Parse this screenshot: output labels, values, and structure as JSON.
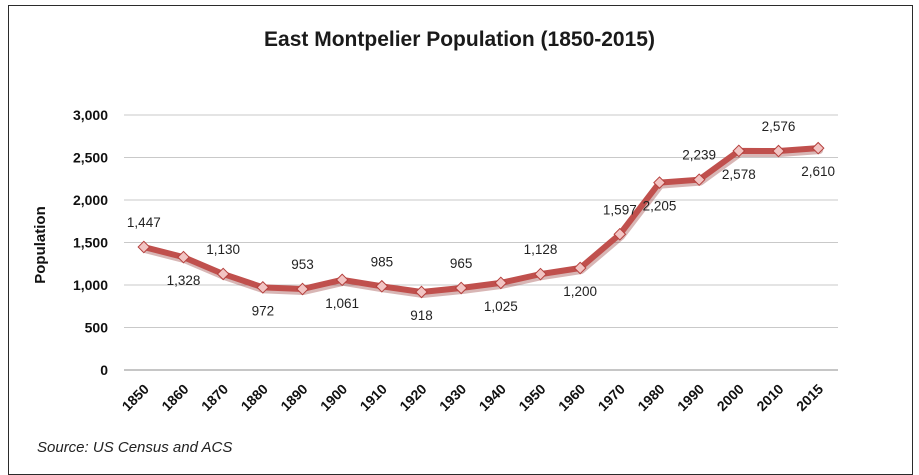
{
  "chart_data": {
    "type": "line",
    "title": "East Montpelier Population (1850-2015)",
    "xlabel": "",
    "ylabel": "Population",
    "ylim": [
      0,
      3000
    ],
    "yticks": [
      "0",
      "500",
      "1,000",
      "1,500",
      "2,000",
      "2,500",
      "3,000"
    ],
    "ytick_values": [
      0,
      500,
      1000,
      1500,
      2000,
      2500,
      3000
    ],
    "categories": [
      "1850",
      "1860",
      "1870",
      "1880",
      "1890",
      "1900",
      "1910",
      "1920",
      "1930",
      "1940",
      "1950",
      "1960",
      "1970",
      "1980",
      "1990",
      "2000",
      "2010",
      "2015"
    ],
    "values": [
      1447,
      1328,
      1130,
      972,
      953,
      1061,
      985,
      918,
      965,
      1025,
      1128,
      1200,
      1597,
      2205,
      2239,
      2578,
      2576,
      2610
    ],
    "data_labels": [
      "1,447",
      "1,328",
      "1,130",
      "972",
      "953",
      "1,061",
      "985",
      "918",
      "965",
      "1,025",
      "1,128",
      "1,200",
      "1,597",
      "2,205",
      "2,239",
      "2,578",
      "2,576",
      "2,610"
    ],
    "grid": true,
    "line_color": "#c0504d",
    "marker_color": "#f2c4c3"
  },
  "source_note": "Source:  US Census and ACS"
}
